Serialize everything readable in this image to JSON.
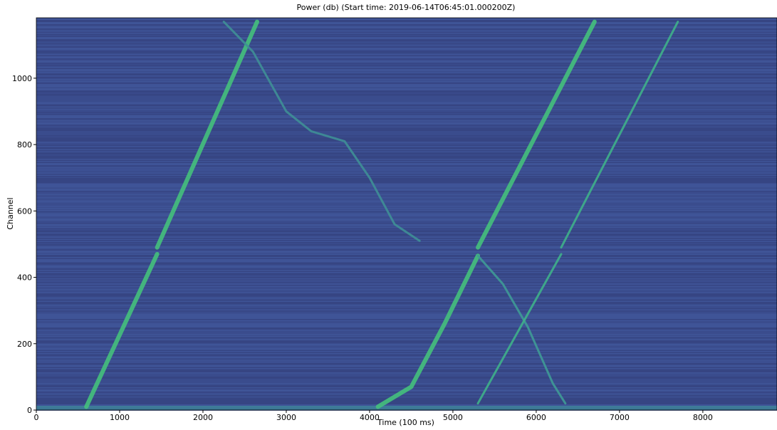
{
  "chart_data": {
    "type": "heatmap",
    "title": "Power (db) (Start time: 2019-06-14T06:45:01.000200Z)",
    "x_label": "Time (100 ms)",
    "y_label": "Channel",
    "xlim": [
      0,
      8890
    ],
    "ylim": [
      0,
      1182
    ],
    "xticks": [
      0,
      1000,
      2000,
      3000,
      4000,
      5000,
      6000,
      7000,
      8000
    ],
    "yticks": [
      0,
      200,
      400,
      600,
      800,
      1000
    ],
    "background_color": "#3b4f8f",
    "series": [
      {
        "color": "#45c07c",
        "x": [
          600,
          1450,
          1450,
          1450,
          2650
        ],
        "values": [
          10,
          470,
          null,
          490,
          1170
        ]
      },
      {
        "color": "#3f8f96",
        "x": [
          2250,
          2600,
          3000,
          3300,
          3700,
          4000,
          4300,
          4600
        ],
        "values": [
          1170,
          1080,
          900,
          840,
          810,
          700,
          560,
          510
        ]
      },
      {
        "color": "#45c07c",
        "x": [
          4100,
          4500,
          4900,
          5300,
          5300,
          5300,
          6700
        ],
        "values": [
          10,
          70,
          260,
          465,
          null,
          490,
          1170
        ]
      },
      {
        "color": "#3f9a96",
        "x": [
          5300,
          5600,
          5900,
          6200,
          6350
        ],
        "values": [
          465,
          380,
          250,
          80,
          20
        ]
      },
      {
        "color": "#3fb08a",
        "x": [
          5300,
          6300,
          6300,
          6300,
          7700
        ],
        "values": [
          20,
          470,
          null,
          490,
          1170
        ]
      }
    ]
  }
}
